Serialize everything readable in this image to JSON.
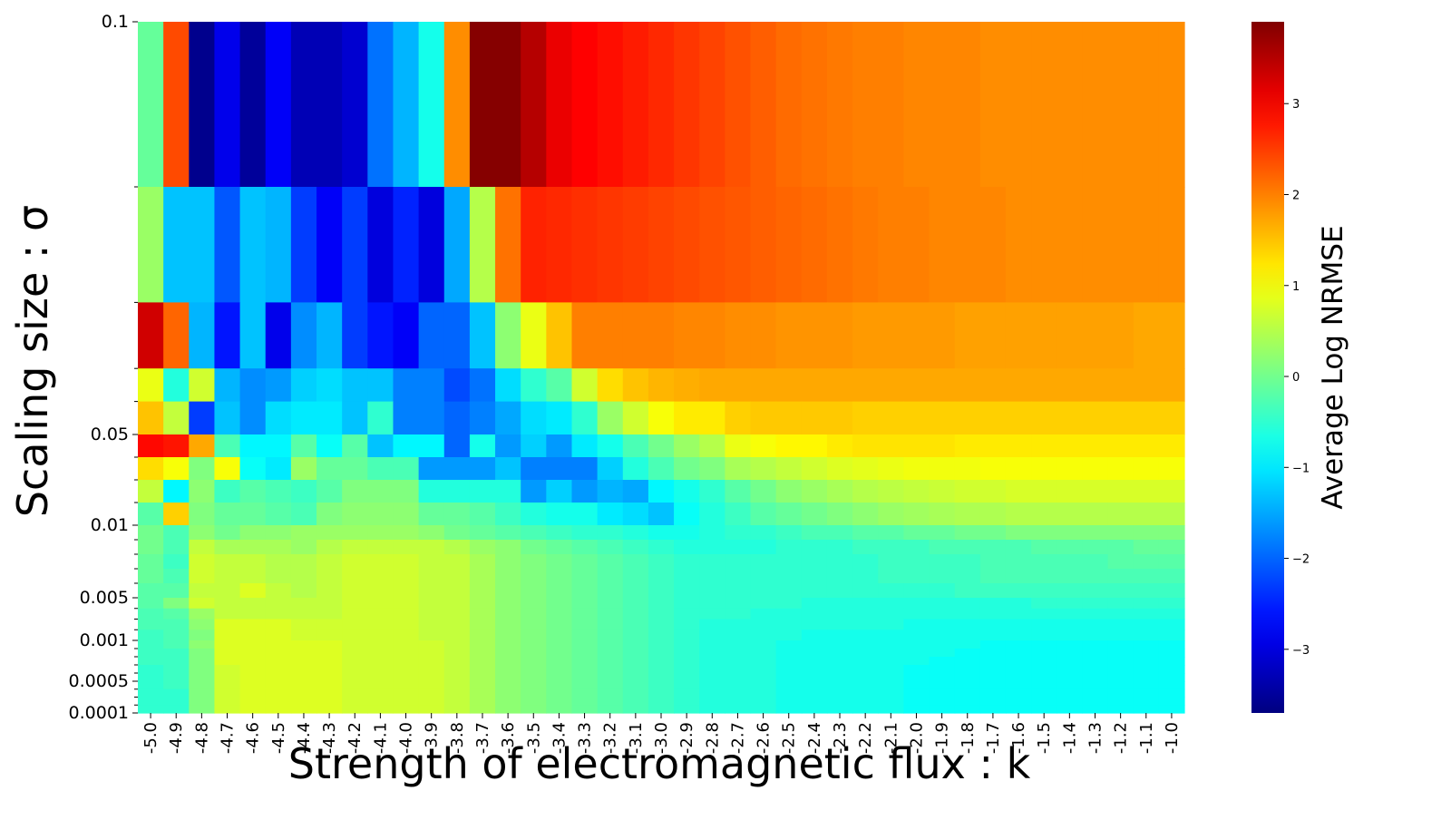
{
  "chart_data": {
    "type": "heatmap",
    "title": "",
    "xlabel": "Strength of electromagnetic flux : k",
    "ylabel": "Scaling size : σ",
    "colorbar_label": "Average Log NRMSE",
    "colorbar_range": [
      -3.7,
      3.9
    ],
    "colorbar_ticks": [
      -3,
      -2,
      -1,
      0,
      1,
      2,
      3
    ],
    "colorbar_tick_labels": [
      "−3",
      "−2",
      "−1",
      "0",
      "1",
      "2",
      "3"
    ],
    "colormap": "jet",
    "x_categories": [
      "-5.0",
      "-4.9",
      "-4.8",
      "-4.7",
      "-4.6",
      "-4.5",
      "-4.4",
      "-4.3",
      "-4.2",
      "-4.1",
      "-4.0",
      "-3.9",
      "-3.8",
      "-3.7",
      "-3.6",
      "-3.5",
      "-3.4",
      "-3.3",
      "-3.2",
      "-3.1",
      "-3.0",
      "-2.9",
      "-2.8",
      "-2.7",
      "-2.6",
      "-2.5",
      "-2.4",
      "-2.3",
      "-2.2",
      "-2.1",
      "-2.0",
      "-1.9",
      "-1.8",
      "-1.7",
      "-1.6",
      "-1.5",
      "-1.4",
      "-1.3",
      "-1.2",
      "-1.1",
      "-1.0"
    ],
    "y_tick_labels": [
      {
        "label": "0.1",
        "sigma": 0.1
      },
      {
        "label": "0.05",
        "sigma": 0.05
      },
      {
        "label": "0.01",
        "sigma": 0.01
      },
      {
        "label": "0.005",
        "sigma": 0.005
      },
      {
        "label": "0.001",
        "sigma": 0.001
      },
      {
        "label": "0.0005",
        "sigma": 0.0005
      },
      {
        "label": "0.0001",
        "sigma": 0.0001
      }
    ],
    "row_bands": [
      {
        "sigma_high": 0.1,
        "sigma_low": 0.08
      },
      {
        "sigma_high": 0.08,
        "sigma_low": 0.066
      },
      {
        "sigma_high": 0.066,
        "sigma_low": 0.058
      },
      {
        "sigma_high": 0.058,
        "sigma_low": 0.054
      },
      {
        "sigma_high": 0.054,
        "sigma_low": 0.05
      },
      {
        "sigma_high": 0.05,
        "sigma_low": 0.04
      },
      {
        "sigma_high": 0.04,
        "sigma_low": 0.03
      },
      {
        "sigma_high": 0.03,
        "sigma_low": 0.02
      },
      {
        "sigma_high": 0.02,
        "sigma_low": 0.01
      },
      {
        "sigma_high": 0.01,
        "sigma_low": 0.009
      },
      {
        "sigma_high": 0.009,
        "sigma_low": 0.008
      },
      {
        "sigma_high": 0.008,
        "sigma_low": 0.007
      },
      {
        "sigma_high": 0.007,
        "sigma_low": 0.006
      },
      {
        "sigma_high": 0.006,
        "sigma_low": 0.005
      },
      {
        "sigma_high": 0.005,
        "sigma_low": 0.004
      },
      {
        "sigma_high": 0.004,
        "sigma_low": 0.003
      },
      {
        "sigma_high": 0.003,
        "sigma_low": 0.002
      },
      {
        "sigma_high": 0.002,
        "sigma_low": 0.001
      },
      {
        "sigma_high": 0.001,
        "sigma_low": 0.0009
      },
      {
        "sigma_high": 0.0009,
        "sigma_low": 0.0008
      },
      {
        "sigma_high": 0.0008,
        "sigma_low": 0.0007
      },
      {
        "sigma_high": 0.0007,
        "sigma_low": 0.0006
      },
      {
        "sigma_high": 0.0006,
        "sigma_low": 0.0005
      },
      {
        "sigma_high": 0.0005,
        "sigma_low": 0.0004
      },
      {
        "sigma_high": 0.0004,
        "sigma_low": 0.0003
      },
      {
        "sigma_high": 0.0003,
        "sigma_low": 0.0002
      },
      {
        "sigma_high": 0.0002,
        "sigma_low": 0.0001
      }
    ],
    "values": [
      [
        -0.1,
        2.4,
        -3.6,
        -2.9,
        -3.5,
        -2.8,
        -3.3,
        -3.3,
        -3.1,
        -1.9,
        -1.4,
        -0.7,
        1.9,
        3.85,
        3.85,
        3.5,
        3.1,
        2.95,
        2.85,
        2.75,
        2.65,
        2.55,
        2.45,
        2.35,
        2.25,
        2.15,
        2.1,
        2.05,
        2.0,
        2.0,
        1.95,
        1.95,
        1.95,
        1.9,
        1.9,
        1.9,
        1.9,
        1.9,
        1.9,
        1.9,
        1.9
      ],
      [
        0.3,
        -1.3,
        -1.3,
        -2.1,
        -1.3,
        -1.4,
        -2.3,
        -2.8,
        -2.3,
        -3.0,
        -2.5,
        -3.0,
        -1.5,
        0.5,
        2.1,
        2.7,
        2.65,
        2.6,
        2.55,
        2.5,
        2.45,
        2.4,
        2.35,
        2.3,
        2.25,
        2.2,
        2.15,
        2.1,
        2.05,
        2.0,
        2.0,
        1.95,
        1.95,
        1.95,
        1.9,
        1.9,
        1.9,
        1.9,
        1.9,
        1.9,
        1.9
      ],
      [
        3.3,
        2.2,
        -1.4,
        -2.6,
        -1.3,
        -2.9,
        -1.7,
        -1.4,
        -2.3,
        -2.6,
        -2.8,
        -2.0,
        -2.0,
        -1.3,
        0.2,
        0.9,
        1.5,
        2.0,
        2.0,
        2.0,
        2.0,
        1.95,
        1.95,
        1.9,
        1.9,
        1.85,
        1.85,
        1.85,
        1.8,
        1.8,
        1.8,
        1.8,
        1.75,
        1.75,
        1.75,
        1.75,
        1.75,
        1.75,
        1.75,
        1.7,
        1.7
      ],
      [
        0.9,
        -0.6,
        0.7,
        -1.4,
        -1.7,
        -1.6,
        -1.2,
        -1.1,
        -1.3,
        -1.3,
        -1.8,
        -1.8,
        -2.2,
        -1.9,
        -1.1,
        -0.5,
        -0.2,
        0.7,
        1.3,
        1.5,
        1.6,
        1.65,
        1.7,
        1.7,
        1.7,
        1.7,
        1.7,
        1.7,
        1.7,
        1.7,
        1.7,
        1.7,
        1.7,
        1.7,
        1.7,
        1.7,
        1.7,
        1.7,
        1.7,
        1.7,
        1.7
      ],
      [
        1.5,
        0.6,
        -2.3,
        -1.3,
        -1.7,
        -1.1,
        -1.0,
        -1.0,
        -1.3,
        -0.5,
        -1.8,
        -1.8,
        -2.0,
        -1.8,
        -1.5,
        -1.1,
        -1.0,
        -0.5,
        0.3,
        0.7,
        1.0,
        1.2,
        1.2,
        1.4,
        1.45,
        1.45,
        1.45,
        1.45,
        1.4,
        1.4,
        1.4,
        1.4,
        1.4,
        1.4,
        1.4,
        1.4,
        1.4,
        1.4,
        1.4,
        1.4,
        1.4
      ],
      [
        2.9,
        2.8,
        1.7,
        -0.3,
        -0.9,
        -0.9,
        -0.2,
        -0.8,
        -0.2,
        -1.3,
        -0.9,
        -0.9,
        -2.0,
        -0.7,
        -1.6,
        -1.2,
        -1.6,
        -1.0,
        -0.7,
        -0.3,
        0.0,
        0.3,
        0.5,
        0.9,
        1.0,
        1.1,
        1.1,
        1.2,
        1.25,
        1.25,
        1.25,
        1.25,
        1.2,
        1.2,
        1.2,
        1.2,
        1.2,
        1.2,
        1.2,
        1.2,
        1.2
      ],
      [
        1.3,
        1.0,
        0.1,
        1.0,
        -0.8,
        -1.0,
        0.3,
        -0.1,
        -0.1,
        -0.3,
        -0.3,
        -1.6,
        -1.6,
        -1.6,
        -1.3,
        -1.8,
        -1.8,
        -1.8,
        -1.2,
        -0.6,
        -0.3,
        0.0,
        0.1,
        0.4,
        0.5,
        0.6,
        0.7,
        0.8,
        0.85,
        0.9,
        0.95,
        0.95,
        0.95,
        1.0,
        1.0,
        1.0,
        1.0,
        1.0,
        1.0,
        1.0,
        1.0
      ],
      [
        0.6,
        -0.9,
        0.2,
        -0.4,
        -0.2,
        -0.3,
        -0.4,
        -0.2,
        0.1,
        0.1,
        0.1,
        -0.6,
        -0.6,
        -0.6,
        -0.6,
        -1.6,
        -1.2,
        -1.6,
        -1.4,
        -1.5,
        -0.9,
        -0.7,
        -0.5,
        -0.2,
        0.0,
        0.2,
        0.3,
        0.4,
        0.5,
        0.55,
        0.6,
        0.65,
        0.7,
        0.7,
        0.75,
        0.75,
        0.75,
        0.75,
        0.75,
        0.75,
        0.75
      ],
      [
        -0.2,
        1.4,
        0.1,
        -0.1,
        -0.1,
        -0.2,
        -0.3,
        0.1,
        0.2,
        0.2,
        0.2,
        -0.1,
        -0.1,
        -0.2,
        -0.4,
        -0.6,
        -0.7,
        -0.7,
        -1.0,
        -1.1,
        -1.3,
        -0.8,
        -0.6,
        -0.4,
        -0.2,
        -0.1,
        0.0,
        0.1,
        0.2,
        0.3,
        0.35,
        0.4,
        0.45,
        0.45,
        0.5,
        0.5,
        0.5,
        0.5,
        0.5,
        0.5,
        0.5
      ],
      [
        0.0,
        -0.3,
        0.2,
        0.0,
        0.2,
        0.2,
        0.3,
        0.3,
        0.3,
        0.3,
        0.3,
        0.2,
        0.0,
        -0.1,
        -0.2,
        -0.3,
        -0.4,
        -0.5,
        -0.5,
        -0.6,
        -0.7,
        -0.7,
        -0.6,
        -0.5,
        -0.5,
        -0.4,
        -0.3,
        -0.3,
        -0.2,
        -0.2,
        -0.1,
        -0.1,
        0.0,
        0.0,
        0.1,
        0.1,
        0.1,
        0.1,
        0.1,
        0.1,
        0.1
      ],
      [
        0.0,
        -0.3,
        0.6,
        0.4,
        0.4,
        0.4,
        0.3,
        0.5,
        0.6,
        0.6,
        0.6,
        0.6,
        0.5,
        0.3,
        0.2,
        0.0,
        -0.1,
        -0.2,
        -0.3,
        -0.4,
        -0.5,
        -0.6,
        -0.6,
        -0.6,
        -0.6,
        -0.5,
        -0.5,
        -0.5,
        -0.4,
        -0.4,
        -0.4,
        -0.3,
        -0.3,
        -0.3,
        -0.3,
        -0.2,
        -0.2,
        -0.2,
        -0.2,
        -0.1,
        -0.1
      ],
      [
        -0.1,
        -0.4,
        0.7,
        0.6,
        0.6,
        0.5,
        0.5,
        0.6,
        0.7,
        0.7,
        0.7,
        0.6,
        0.6,
        0.4,
        0.2,
        0.1,
        0.0,
        -0.1,
        -0.2,
        -0.3,
        -0.4,
        -0.5,
        -0.5,
        -0.5,
        -0.5,
        -0.5,
        -0.5,
        -0.5,
        -0.5,
        -0.4,
        -0.4,
        -0.4,
        -0.4,
        -0.3,
        -0.3,
        -0.3,
        -0.3,
        -0.3,
        -0.2,
        -0.2,
        -0.2
      ],
      [
        -0.1,
        -0.3,
        0.7,
        0.6,
        0.6,
        0.5,
        0.5,
        0.6,
        0.7,
        0.7,
        0.7,
        0.6,
        0.6,
        0.4,
        0.2,
        0.1,
        0.0,
        -0.1,
        -0.2,
        -0.3,
        -0.4,
        -0.5,
        -0.5,
        -0.5,
        -0.5,
        -0.5,
        -0.5,
        -0.5,
        -0.5,
        -0.4,
        -0.4,
        -0.4,
        -0.4,
        -0.3,
        -0.3,
        -0.3,
        -0.3,
        -0.3,
        -0.3,
        -0.3,
        -0.3
      ],
      [
        -0.2,
        -0.2,
        0.6,
        0.6,
        0.8,
        0.6,
        0.5,
        0.6,
        0.7,
        0.7,
        0.7,
        0.6,
        0.6,
        0.4,
        0.2,
        0.1,
        0.0,
        -0.1,
        -0.2,
        -0.3,
        -0.4,
        -0.5,
        -0.5,
        -0.5,
        -0.5,
        -0.5,
        -0.5,
        -0.5,
        -0.5,
        -0.5,
        -0.5,
        -0.5,
        -0.4,
        -0.4,
        -0.4,
        -0.4,
        -0.4,
        -0.4,
        -0.4,
        -0.4,
        -0.4
      ],
      [
        -0.2,
        0.1,
        0.7,
        0.6,
        0.6,
        0.6,
        0.6,
        0.6,
        0.7,
        0.7,
        0.7,
        0.6,
        0.6,
        0.4,
        0.2,
        0.1,
        0.0,
        -0.1,
        -0.2,
        -0.3,
        -0.4,
        -0.5,
        -0.5,
        -0.5,
        -0.5,
        -0.5,
        -0.6,
        -0.6,
        -0.6,
        -0.6,
        -0.6,
        -0.6,
        -0.6,
        -0.6,
        -0.6,
        -0.5,
        -0.5,
        -0.5,
        -0.5,
        -0.5,
        -0.5
      ],
      [
        -0.3,
        -0.2,
        0.3,
        0.6,
        0.6,
        0.6,
        0.6,
        0.6,
        0.7,
        0.7,
        0.7,
        0.6,
        0.6,
        0.4,
        0.2,
        0.1,
        0.0,
        -0.1,
        -0.2,
        -0.3,
        -0.4,
        -0.5,
        -0.5,
        -0.5,
        -0.6,
        -0.6,
        -0.6,
        -0.6,
        -0.6,
        -0.6,
        -0.6,
        -0.6,
        -0.6,
        -0.6,
        -0.6,
        -0.6,
        -0.6,
        -0.6,
        -0.6,
        -0.6,
        -0.6
      ],
      [
        -0.3,
        -0.3,
        0.2,
        0.8,
        0.8,
        0.8,
        0.7,
        0.7,
        0.7,
        0.7,
        0.7,
        0.6,
        0.6,
        0.4,
        0.2,
        0.1,
        0.0,
        -0.1,
        -0.2,
        -0.3,
        -0.4,
        -0.5,
        -0.6,
        -0.6,
        -0.6,
        -0.6,
        -0.6,
        -0.6,
        -0.6,
        -0.6,
        -0.7,
        -0.7,
        -0.7,
        -0.7,
        -0.7,
        -0.7,
        -0.7,
        -0.7,
        -0.7,
        -0.7,
        -0.7
      ],
      [
        -0.4,
        -0.3,
        0.1,
        0.8,
        0.8,
        0.8,
        0.7,
        0.7,
        0.7,
        0.7,
        0.7,
        0.6,
        0.6,
        0.4,
        0.2,
        0.1,
        0.0,
        -0.1,
        -0.2,
        -0.3,
        -0.4,
        -0.5,
        -0.6,
        -0.6,
        -0.6,
        -0.6,
        -0.7,
        -0.7,
        -0.7,
        -0.7,
        -0.7,
        -0.7,
        -0.7,
        -0.7,
        -0.7,
        -0.7,
        -0.7,
        -0.7,
        -0.7,
        -0.7,
        -0.7
      ],
      [
        -0.4,
        -0.3,
        0.2,
        0.8,
        0.8,
        0.8,
        0.8,
        0.8,
        0.7,
        0.7,
        0.7,
        0.7,
        0.6,
        0.4,
        0.2,
        0.1,
        0.0,
        -0.1,
        -0.2,
        -0.3,
        -0.4,
        -0.5,
        -0.6,
        -0.6,
        -0.6,
        -0.7,
        -0.7,
        -0.7,
        -0.7,
        -0.7,
        -0.7,
        -0.7,
        -0.7,
        -0.8,
        -0.8,
        -0.8,
        -0.8,
        -0.8,
        -0.8,
        -0.8,
        -0.8
      ],
      [
        -0.4,
        -0.4,
        0.1,
        0.8,
        0.8,
        0.8,
        0.8,
        0.8,
        0.7,
        0.7,
        0.7,
        0.7,
        0.6,
        0.4,
        0.2,
        0.1,
        0.0,
        -0.1,
        -0.2,
        -0.3,
        -0.4,
        -0.5,
        -0.6,
        -0.6,
        -0.6,
        -0.7,
        -0.7,
        -0.7,
        -0.7,
        -0.7,
        -0.7,
        -0.7,
        -0.8,
        -0.8,
        -0.8,
        -0.8,
        -0.8,
        -0.8,
        -0.8,
        -0.8,
        -0.8
      ],
      [
        -0.4,
        -0.4,
        0.1,
        0.8,
        0.8,
        0.8,
        0.8,
        0.8,
        0.7,
        0.7,
        0.7,
        0.7,
        0.6,
        0.4,
        0.2,
        0.1,
        0.0,
        -0.1,
        -0.2,
        -0.3,
        -0.4,
        -0.5,
        -0.6,
        -0.6,
        -0.6,
        -0.7,
        -0.7,
        -0.7,
        -0.7,
        -0.7,
        -0.7,
        -0.8,
        -0.8,
        -0.8,
        -0.8,
        -0.8,
        -0.8,
        -0.8,
        -0.8,
        -0.8,
        -0.8
      ],
      [
        -0.5,
        -0.4,
        0.1,
        0.7,
        0.8,
        0.8,
        0.8,
        0.8,
        0.7,
        0.7,
        0.7,
        0.7,
        0.6,
        0.4,
        0.2,
        0.1,
        0.0,
        -0.1,
        -0.2,
        -0.3,
        -0.4,
        -0.5,
        -0.6,
        -0.6,
        -0.6,
        -0.7,
        -0.7,
        -0.7,
        -0.7,
        -0.7,
        -0.8,
        -0.8,
        -0.8,
        -0.8,
        -0.8,
        -0.8,
        -0.8,
        -0.8,
        -0.8,
        -0.8,
        -0.8
      ],
      [
        -0.5,
        -0.4,
        0.1,
        0.7,
        0.8,
        0.8,
        0.8,
        0.8,
        0.7,
        0.7,
        0.7,
        0.7,
        0.6,
        0.4,
        0.2,
        0.1,
        0.0,
        -0.1,
        -0.2,
        -0.3,
        -0.4,
        -0.5,
        -0.6,
        -0.6,
        -0.6,
        -0.7,
        -0.7,
        -0.7,
        -0.7,
        -0.7,
        -0.8,
        -0.8,
        -0.8,
        -0.8,
        -0.8,
        -0.8,
        -0.8,
        -0.8,
        -0.8,
        -0.8,
        -0.8
      ],
      [
        -0.5,
        -0.4,
        0.1,
        0.7,
        0.8,
        0.8,
        0.8,
        0.8,
        0.7,
        0.7,
        0.7,
        0.7,
        0.6,
        0.4,
        0.2,
        0.1,
        0.0,
        -0.1,
        -0.2,
        -0.3,
        -0.4,
        -0.5,
        -0.6,
        -0.6,
        -0.6,
        -0.7,
        -0.7,
        -0.7,
        -0.7,
        -0.7,
        -0.8,
        -0.8,
        -0.8,
        -0.8,
        -0.8,
        -0.8,
        -0.8,
        -0.8,
        -0.8,
        -0.8,
        -0.8
      ],
      [
        -0.5,
        -0.5,
        0.1,
        0.7,
        0.8,
        0.8,
        0.8,
        0.8,
        0.7,
        0.7,
        0.7,
        0.7,
        0.6,
        0.4,
        0.2,
        0.1,
        0.0,
        -0.1,
        -0.2,
        -0.3,
        -0.4,
        -0.5,
        -0.6,
        -0.6,
        -0.6,
        -0.7,
        -0.7,
        -0.7,
        -0.7,
        -0.7,
        -0.8,
        -0.8,
        -0.8,
        -0.8,
        -0.8,
        -0.8,
        -0.8,
        -0.8,
        -0.8,
        -0.8,
        -0.8
      ],
      [
        -0.5,
        -0.5,
        0.1,
        0.7,
        0.8,
        0.8,
        0.8,
        0.8,
        0.7,
        0.7,
        0.7,
        0.7,
        0.6,
        0.4,
        0.2,
        0.1,
        0.0,
        -0.1,
        -0.2,
        -0.3,
        -0.4,
        -0.5,
        -0.6,
        -0.6,
        -0.6,
        -0.7,
        -0.7,
        -0.7,
        -0.7,
        -0.7,
        -0.8,
        -0.8,
        -0.8,
        -0.8,
        -0.8,
        -0.8,
        -0.8,
        -0.8,
        -0.8,
        -0.8,
        -0.8
      ],
      [
        -0.5,
        -0.5,
        0.1,
        0.7,
        0.8,
        0.8,
        0.8,
        0.8,
        0.7,
        0.7,
        0.7,
        0.7,
        0.6,
        0.4,
        0.2,
        0.1,
        0.0,
        -0.1,
        -0.2,
        -0.3,
        -0.4,
        -0.5,
        -0.6,
        -0.6,
        -0.6,
        -0.7,
        -0.7,
        -0.7,
        -0.7,
        -0.7,
        -0.8,
        -0.8,
        -0.8,
        -0.8,
        -0.8,
        -0.8,
        -0.8,
        -0.8,
        -0.8,
        -0.8,
        -0.8
      ]
    ]
  }
}
